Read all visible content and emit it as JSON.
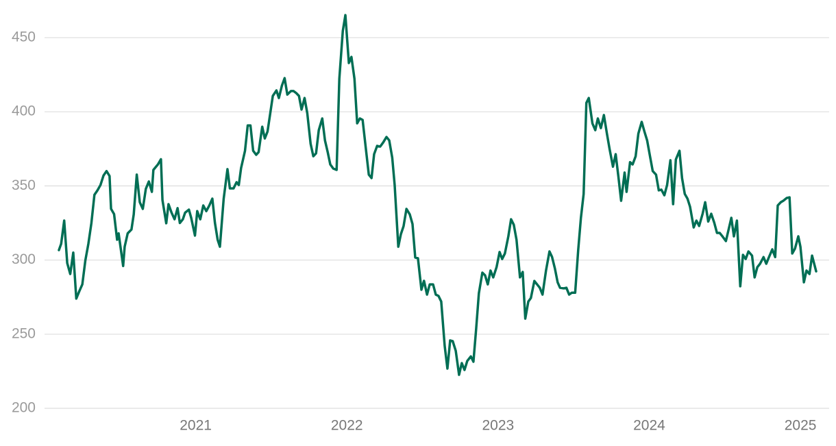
{
  "chart_data": {
    "type": "line",
    "xlim": [
      2020.0,
      2025.19
    ],
    "xticks": [
      2021,
      2022,
      2023,
      2024,
      2025
    ],
    "ylim": [
      200,
      468
    ],
    "yticks": [
      200,
      250,
      300,
      350,
      400,
      450
    ],
    "grid": true,
    "series": [
      {
        "color": "#006e54",
        "x": [
          2020.095,
          2020.11,
          2020.13,
          2020.15,
          2020.17,
          2020.19,
          2020.21,
          2020.23,
          2020.25,
          2020.27,
          2020.29,
          2020.31,
          2020.33,
          2020.35,
          2020.37,
          2020.39,
          2020.41,
          2020.43,
          2020.44,
          2020.46,
          2020.48,
          2020.49,
          2020.52,
          2020.53,
          2020.55,
          2020.575,
          2020.59,
          2020.61,
          2020.63,
          2020.65,
          2020.67,
          2020.69,
          2020.71,
          2020.72,
          2020.75,
          2020.77,
          2020.78,
          2020.805,
          2020.82,
          2020.84,
          2020.86,
          2020.88,
          2020.895,
          2020.915,
          2020.93,
          2020.955,
          2020.97,
          2020.995,
          2021.01,
          2021.03,
          2021.05,
          2021.07,
          2021.09,
          2021.11,
          2021.127,
          2021.145,
          2021.16,
          2021.185,
          2021.21,
          2021.226,
          2021.25,
          2021.27,
          2021.285,
          2021.3,
          2021.326,
          2021.344,
          2021.362,
          2021.38,
          2021.4,
          2021.416,
          2021.44,
          2021.457,
          2021.475,
          2021.493,
          2021.51,
          2021.534,
          2021.55,
          2021.57,
          2021.588,
          2021.606,
          2021.63,
          2021.647,
          2021.665,
          2021.683,
          2021.7,
          2021.72,
          2021.738,
          2021.76,
          2021.778,
          2021.796,
          2021.814,
          2021.837,
          2021.855,
          2021.873,
          2021.89,
          2021.91,
          2021.932,
          2021.95,
          2021.973,
          2021.99,
          2022.013,
          2022.03,
          2022.05,
          2022.068,
          2022.086,
          2022.104,
          2022.127,
          2022.145,
          2022.163,
          2022.18,
          2022.2,
          2022.22,
          2022.24,
          2022.262,
          2022.28,
          2022.3,
          2022.316,
          2022.34,
          2022.357,
          2022.375,
          2022.394,
          2022.416,
          2022.434,
          2022.452,
          2022.47,
          2022.493,
          2022.51,
          2022.53,
          2022.548,
          2022.57,
          2022.588,
          2022.606,
          2022.624,
          2022.647,
          2022.665,
          2022.683,
          2022.7,
          2022.72,
          2022.742,
          2022.76,
          2022.778,
          2022.796,
          2022.82,
          2022.837,
          2022.855,
          2022.873,
          2022.896,
          2022.914,
          2022.932,
          2022.95,
          2022.968,
          2022.99,
          2023.01,
          2023.027,
          2023.045,
          2023.068,
          2023.086,
          2023.104,
          2023.122,
          2023.145,
          2023.163,
          2023.18,
          2023.2,
          2023.217,
          2023.24,
          2023.258,
          2023.276,
          2023.294,
          2023.317,
          2023.34,
          2023.357,
          2023.376,
          2023.394,
          2023.41,
          2023.434,
          2023.452,
          2023.47,
          2023.488,
          2023.51,
          2023.53,
          2023.548,
          2023.566,
          2023.584,
          2023.6,
          2023.624,
          2023.643,
          2023.66,
          2023.68,
          2023.7,
          2023.72,
          2023.738,
          2023.76,
          2023.778,
          2023.796,
          2023.814,
          2023.837,
          2023.85,
          2023.873,
          2023.89,
          2023.91,
          2023.928,
          2023.95,
          2023.968,
          2023.986,
          2024.005,
          2024.023,
          2024.045,
          2024.063,
          2024.08,
          2024.1,
          2024.118,
          2024.14,
          2024.158,
          2024.176,
          2024.2,
          2024.217,
          2024.235,
          2024.253,
          2024.27,
          2024.294,
          2024.312,
          2024.33,
          2024.353,
          2024.37,
          2024.39,
          2024.41,
          2024.43,
          2024.448,
          2024.466,
          2024.484,
          2024.507,
          2024.525,
          2024.543,
          2024.56,
          2024.58,
          2024.602,
          2024.62,
          2024.638,
          2024.656,
          2024.68,
          2024.697,
          2024.715,
          2024.733,
          2024.756,
          2024.774,
          2024.792,
          2024.814,
          2024.833,
          2024.85,
          2024.87,
          2024.887,
          2024.91,
          2024.928,
          2024.946,
          2024.964,
          2024.986,
          2025.0,
          2025.023,
          2025.04,
          2025.06,
          2025.077,
          2025.104
        ],
        "values": [
          306.7,
          311,
          326.6,
          298,
          290.6,
          305,
          274,
          279,
          283.6,
          299.8,
          311,
          325,
          344,
          347,
          350.6,
          357,
          360,
          356.7,
          334.5,
          331,
          313.7,
          318,
          296,
          309,
          318,
          320.6,
          330.8,
          357.6,
          339,
          334.5,
          348,
          353,
          346,
          360.8,
          364.5,
          368,
          340.5,
          324.8,
          337.7,
          332,
          327.5,
          335,
          325,
          327.5,
          332,
          334,
          328.5,
          316.5,
          333,
          327.5,
          336.8,
          333,
          336.8,
          341.4,
          325.2,
          313.7,
          309,
          341.4,
          361.3,
          348.3,
          348.3,
          352.5,
          350.6,
          362,
          373.7,
          390.8,
          390.8,
          373.7,
          371,
          372.8,
          389.9,
          382,
          386.7,
          399,
          410.7,
          414.4,
          409.3,
          417.6,
          422.7,
          411.6,
          414,
          414,
          412.6,
          410.7,
          401.5,
          409.3,
          399,
          378.4,
          370,
          372,
          387.6,
          395.5,
          380.7,
          372.8,
          364.5,
          361.7,
          360.8,
          422.3,
          454.6,
          465.2,
          432.9,
          437,
          422.3,
          392.2,
          395.5,
          394.5,
          373.7,
          357.6,
          355.3,
          371.4,
          377,
          376.5,
          379.3,
          383,
          380.7,
          369,
          350.6,
          309,
          317.4,
          322.9,
          334.5,
          330.8,
          324.3,
          301.7,
          301.2,
          280,
          286,
          276.7,
          283.6,
          283.6,
          276.7,
          275.8,
          272,
          242,
          226.8,
          245.8,
          245.3,
          238.8,
          222.6,
          230.5,
          225.9,
          231.9,
          235,
          231.4,
          253.6,
          277.6,
          291.5,
          289.7,
          283.6,
          292.9,
          288.3,
          295.2,
          305.4,
          300.7,
          304.4,
          316,
          327.5,
          323.8,
          313.7,
          288.3,
          292,
          260.5,
          272,
          274.4,
          285.9,
          283.6,
          281.3,
          276.7,
          292.9,
          305.8,
          302.1,
          294.3,
          285,
          281.3,
          280.9,
          281.3,
          276.7,
          278,
          278,
          306.7,
          328.5,
          344.6,
          406,
          409.3,
          392.2,
          387.6,
          395.5,
          389,
          397.8,
          385.3,
          374.7,
          363,
          371.4,
          356.2,
          340,
          359,
          346,
          366,
          364.5,
          370,
          385.3,
          393.2,
          386.7,
          380.7,
          370,
          360,
          357.6,
          347,
          347.5,
          343.7,
          350.6,
          367.3,
          337.7,
          367.8,
          373.7,
          355.3,
          344.6,
          341.4,
          335.9,
          322,
          326.6,
          323,
          331.2,
          339,
          326,
          331.2,
          325.2,
          318.3,
          318.3,
          316,
          312.8,
          320.6,
          328.5,
          316,
          326.6,
          282.3,
          303.5,
          300.7,
          305.8,
          303,
          288.3,
          295.2,
          297.5,
          302,
          297.5,
          302,
          307.2,
          302,
          336.8,
          339,
          340,
          341.9,
          342.3,
          304.4,
          307.7,
          316,
          309,
          285,
          292.9,
          290.6,
          303,
          292.4
        ]
      }
    ]
  }
}
